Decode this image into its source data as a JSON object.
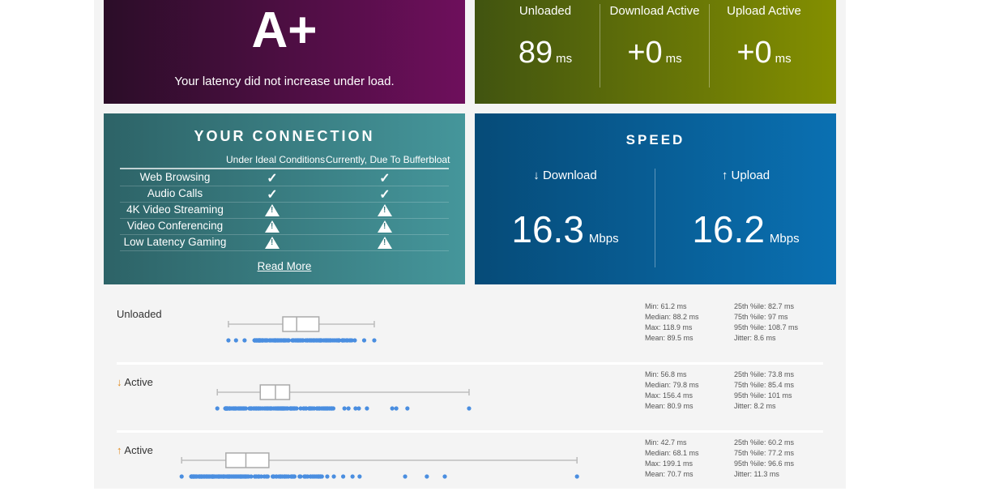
{
  "grade": {
    "letter": "A+",
    "message": "Your latency did not increase under load."
  },
  "latency": [
    {
      "label": "Unloaded",
      "value": "89",
      "unit": "ms"
    },
    {
      "label": "Download Active",
      "value": "+0",
      "unit": "ms"
    },
    {
      "label": "Upload Active",
      "value": "+0",
      "unit": "ms"
    }
  ],
  "connection": {
    "title": "YOUR CONNECTION",
    "col_ideal": "Under Ideal Conditions",
    "col_current": "Currently, Due To Bufferbloat",
    "rows": [
      {
        "name": "Web Browsing",
        "ideal": "check",
        "current": "check"
      },
      {
        "name": "Audio Calls",
        "ideal": "check",
        "current": "check"
      },
      {
        "name": "4K Video Streaming",
        "ideal": "warning",
        "current": "warning"
      },
      {
        "name": "Video Conferencing",
        "ideal": "warning",
        "current": "warning"
      },
      {
        "name": "Low Latency Gaming",
        "ideal": "warning",
        "current": "warning"
      }
    ],
    "read_more": "Read More"
  },
  "speed": {
    "title": "SPEED",
    "download": {
      "label": "↓ Download",
      "value": "16.3",
      "unit": "Mbps"
    },
    "upload": {
      "label": "↑ Upload",
      "value": "16.2",
      "unit": "Mbps"
    }
  },
  "colors": {
    "dot": "#4a8ee0",
    "arrow": "#e08a1e"
  },
  "chart_data": {
    "type": "boxplot",
    "unit": "ms",
    "series": [
      {
        "name": "Unloaded",
        "arrow": "",
        "min": 61.2,
        "q1": 82.7,
        "median": 88.2,
        "q3": 97,
        "max": 118.9,
        "dense": [
          71.5,
          110.6
        ],
        "points": [
          61.2,
          64.2,
          67.6,
          108.3,
          111.2,
          114.9,
          118.9
        ],
        "stats": {
          "left": [
            "Min: 61.2 ms",
            "Median: 88.2 ms",
            "Max: 118.9 ms",
            "Mean: 89.5 ms"
          ],
          "right": [
            "25th %ile: 82.7 ms",
            "75th %ile: 97 ms",
            "95th %ile: 108.7 ms",
            "Jitter: 8.6 ms"
          ]
        }
      },
      {
        "name": "Active",
        "arrow": "↓",
        "min": 56.8,
        "q1": 73.8,
        "median": 79.8,
        "q3": 85.4,
        "max": 156.4,
        "dense": [
          60,
          104.1
        ],
        "points": [
          56.8,
          107.1,
          108.7,
          111.5,
          112.8,
          116,
          126,
          127.6,
          132,
          156.4
        ],
        "stats": {
          "left": [
            "Min: 56.8 ms",
            "Median: 79.8 ms",
            "Max: 156.4 ms",
            "Mean: 80.9 ms"
          ],
          "right": [
            "25th %ile: 73.8 ms",
            "75th %ile: 85.4 ms",
            "95th %ile: 101 ms",
            "Jitter: 8.2 ms"
          ]
        }
      },
      {
        "name": "Active",
        "arrow": "↑",
        "min": 42.7,
        "q1": 60.2,
        "median": 68.1,
        "q3": 77.2,
        "max": 199.1,
        "dense": [
          46.5,
          98.4
        ],
        "points": [
          42.7,
          100.3,
          102.9,
          106.6,
          110.3,
          113.1,
          131.1,
          139.7,
          146.8,
          199.1
        ],
        "stats": {
          "left": [
            "Min: 42.7 ms",
            "Median: 68.1 ms",
            "Max: 199.1 ms",
            "Mean: 70.7 ms"
          ],
          "right": [
            "25th %ile: 60.2 ms",
            "75th %ile: 77.2 ms",
            "95th %ile: 96.6 ms",
            "Jitter: 11.3 ms"
          ]
        }
      }
    ]
  }
}
